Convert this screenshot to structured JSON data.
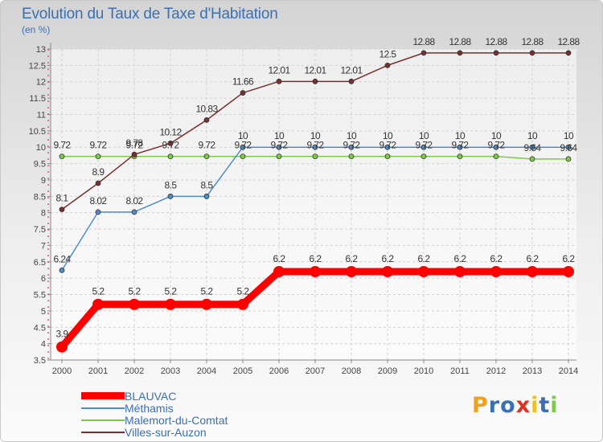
{
  "chart_data": {
    "type": "line",
    "title": "Evolution du Taux de Taxe d'Habitation",
    "ylabel": "(en %)",
    "xlabel": "",
    "ylim": [
      3.5,
      13
    ],
    "yticks": [
      "3.5",
      "4",
      "4.5",
      "5",
      "5.5",
      "6",
      "6.5",
      "7",
      "7.5",
      "8",
      "8.5",
      "9",
      "9.5",
      "10",
      "10.5",
      "11",
      "11.5",
      "12",
      "12.5",
      "13"
    ],
    "x": [
      "2000",
      "2001",
      "2002",
      "2003",
      "2004",
      "2005",
      "2006",
      "2007",
      "2008",
      "2009",
      "2010",
      "2011",
      "2012",
      "2013",
      "2014"
    ],
    "series": [
      {
        "name": "BLAUVAC",
        "color": "#ff0000",
        "values": [
          3.9,
          5.2,
          5.2,
          5.2,
          5.2,
          5.2,
          6.2,
          6.2,
          6.2,
          6.2,
          6.2,
          6.2,
          6.2,
          6.2,
          6.2
        ],
        "labels": [
          "3.9",
          "5.2",
          "5.2",
          "5.2",
          "5.2",
          "5.2",
          "6.2",
          "6.2",
          "6.2",
          "6.2",
          "6.2",
          "6.2",
          "6.2",
          "6.2",
          "6.2"
        ]
      },
      {
        "name": "Méthamis",
        "color": "#4f8dc9",
        "values": [
          6.24,
          8.02,
          8.02,
          8.5,
          8.5,
          10,
          10,
          10,
          10,
          10,
          10,
          10,
          10,
          10,
          10
        ],
        "labels": [
          "6.24",
          "8.02",
          "8.02",
          "8.5",
          "8.5",
          "10",
          "10",
          "10",
          "10",
          "10",
          "10",
          "10",
          "10",
          "10",
          "10"
        ]
      },
      {
        "name": "Malemort-du-Comtat",
        "color": "#7fc94a",
        "values": [
          9.72,
          9.72,
          9.72,
          9.72,
          9.72,
          9.72,
          9.72,
          9.72,
          9.72,
          9.72,
          9.72,
          9.72,
          9.72,
          9.64,
          9.64
        ],
        "labels": [
          "9.72",
          "9.72",
          "9.72",
          "9.72",
          "9.72",
          "9.72",
          "9.72",
          "9.72",
          "9.72",
          "9.72",
          "9.72",
          "9.72",
          "9.72",
          "9.64",
          "9.64"
        ]
      },
      {
        "name": "Villes-sur-Auzon",
        "color": "#7a2e2e",
        "values": [
          8.1,
          8.9,
          9.78,
          10.12,
          10.83,
          11.66,
          12.01,
          12.01,
          12.01,
          12.5,
          12.88,
          12.88,
          12.88,
          12.88,
          12.88
        ],
        "labels": [
          "8.1",
          "8.9",
          "9.78",
          "10.12",
          "10.83",
          "11.66",
          "12.01",
          "12.01",
          "12.01",
          "12.5",
          "12.88",
          "12.88",
          "12.88",
          "12.88",
          "12.88"
        ]
      }
    ]
  },
  "logo": {
    "letters": [
      "P",
      "r",
      "o",
      "x",
      "i",
      "t",
      "i"
    ],
    "colors": [
      "#f0a020",
      "#3a6fb5",
      "#3a6fb5",
      "#e03020",
      "#f0c020",
      "#3a6fb5",
      "#7fc94a"
    ]
  }
}
